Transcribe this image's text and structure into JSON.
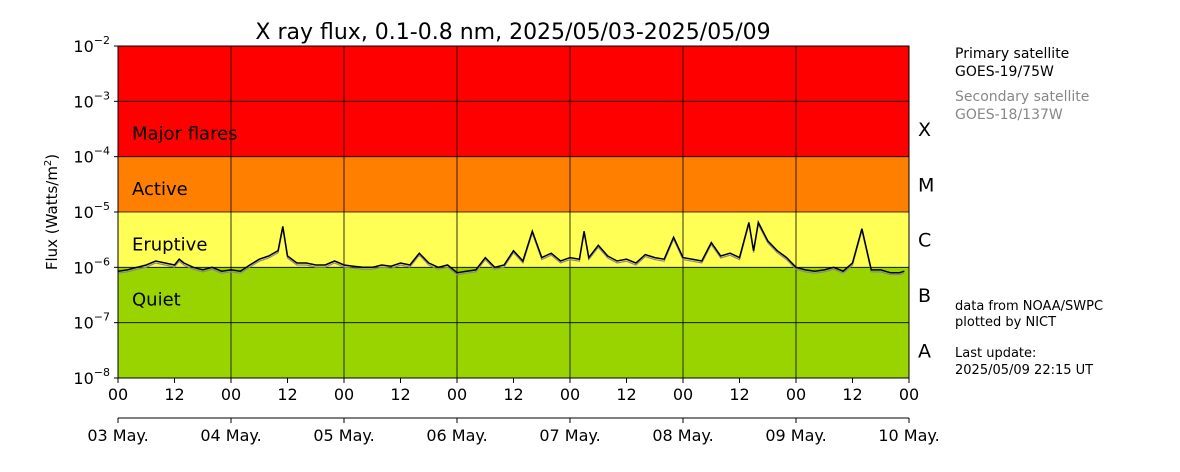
{
  "chart_data": {
    "type": "line",
    "title": "X ray flux, 0.1-0.8 nm, 2025/05/03-2025/05/09",
    "ylabel": "Flux (Watts/m",
    "ylabel_sup": "2",
    "ylabel_close": ")",
    "yscale": "log",
    "ylim": [
      1e-08,
      0.01
    ],
    "y_ticks": [
      {
        "base": "10",
        "exp": "−8"
      },
      {
        "base": "10",
        "exp": "−7"
      },
      {
        "base": "10",
        "exp": "−6"
      },
      {
        "base": "10",
        "exp": "−5"
      },
      {
        "base": "10",
        "exp": "−4"
      },
      {
        "base": "10",
        "exp": "−3"
      },
      {
        "base": "10",
        "exp": "−2"
      }
    ],
    "x_hour_ticks": [
      "00",
      "12",
      "00",
      "12",
      "00",
      "12",
      "00",
      "12",
      "00",
      "12",
      "00",
      "12",
      "00",
      "12",
      "00"
    ],
    "x_day_ticks": [
      "03 May.",
      "04 May.",
      "05 May.",
      "06 May.",
      "07 May.",
      "08 May.",
      "09 May.",
      "10 May."
    ],
    "xlim_hours": [
      0,
      168
    ],
    "bands": [
      {
        "name": "Major flares",
        "class": "X",
        "from_exp": -4,
        "to_exp": -2,
        "color": "#ff0000"
      },
      {
        "name": "Active",
        "class": "M",
        "from_exp": -5,
        "to_exp": -4,
        "color": "#ff7f00"
      },
      {
        "name": "Eruptive",
        "class": "C",
        "from_exp": -6,
        "to_exp": -5,
        "color": "#ffff55"
      },
      {
        "name": "Quiet",
        "class": "B",
        "from_exp": -8,
        "to_exp": -6,
        "color": "#99d400"
      }
    ],
    "class_letters": [
      "X",
      "M",
      "C",
      "B",
      "A"
    ],
    "series": [
      {
        "color": "#000000",
        "secondary_color": "#888888",
        "x_hours": [
          0,
          2,
          4,
          6,
          8,
          10,
          12,
          13,
          14,
          16,
          18,
          20,
          22,
          24,
          26,
          28,
          30,
          32,
          34,
          35,
          36,
          38,
          40,
          42,
          44,
          46,
          48,
          50,
          52,
          54,
          56,
          58,
          60,
          62,
          64,
          66,
          68,
          70,
          72,
          74,
          76,
          78,
          80,
          82,
          84,
          86,
          88,
          90,
          92,
          94,
          96,
          98,
          99,
          100,
          102,
          104,
          106,
          108,
          110,
          112,
          114,
          116,
          118,
          120,
          122,
          124,
          126,
          128,
          130,
          132,
          134,
          135,
          136,
          138,
          140,
          142,
          144,
          146,
          148,
          150,
          152,
          154,
          156,
          158,
          160,
          162,
          164,
          166,
          167
        ],
        "y": [
          8.5e-07,
          9e-07,
          1e-06,
          1.1e-06,
          1.3e-06,
          1.2e-06,
          1.1e-06,
          1.4e-06,
          1.2e-06,
          1e-06,
          9e-07,
          1e-06,
          8.5e-07,
          9e-07,
          8.5e-07,
          1.1e-06,
          1.4e-06,
          1.6e-06,
          2e-06,
          5.5e-06,
          1.6e-06,
          1.2e-06,
          1.2e-06,
          1.1e-06,
          1.1e-06,
          1.3e-06,
          1.1e-06,
          1.05e-06,
          1e-06,
          1e-06,
          1.1e-06,
          1.05e-06,
          1.2e-06,
          1.1e-06,
          1.8e-06,
          1.2e-06,
          1e-06,
          1.1e-06,
          8e-07,
          8.5e-07,
          9e-07,
          1.5e-06,
          1e-06,
          1.1e-06,
          2e-06,
          1.3e-06,
          4.5e-06,
          1.5e-06,
          1.8e-06,
          1.3e-06,
          1.5e-06,
          1.4e-06,
          4.5e-06,
          1.5e-06,
          2.5e-06,
          1.6e-06,
          1.3e-06,
          1.4e-06,
          1.2e-06,
          1.7e-06,
          1.5e-06,
          1.4e-06,
          3.5e-06,
          1.5e-06,
          1.4e-06,
          1.3e-06,
          2.8e-06,
          1.6e-06,
          1.8e-06,
          1.5e-06,
          6.5e-06,
          2e-06,
          6.5e-06,
          3e-06,
          2e-06,
          1.5e-06,
          1e-06,
          9e-07,
          8.5e-07,
          9e-07,
          1e-06,
          8.5e-07,
          1.2e-06,
          5e-06,
          9e-07,
          9e-07,
          8e-07,
          8e-07,
          8.5e-07
        ]
      }
    ]
  },
  "sidebar": {
    "primary_label": "Primary satellite",
    "primary_value": "GOES-19/75W",
    "secondary_label": "Secondary satellite",
    "secondary_value": "GOES-18/137W",
    "source": "data from NOAA/SWPC",
    "plotted_by": "plotted by NICT",
    "last_update_label": "Last update:",
    "last_update_value": "2025/05/09 22:15 UT"
  }
}
